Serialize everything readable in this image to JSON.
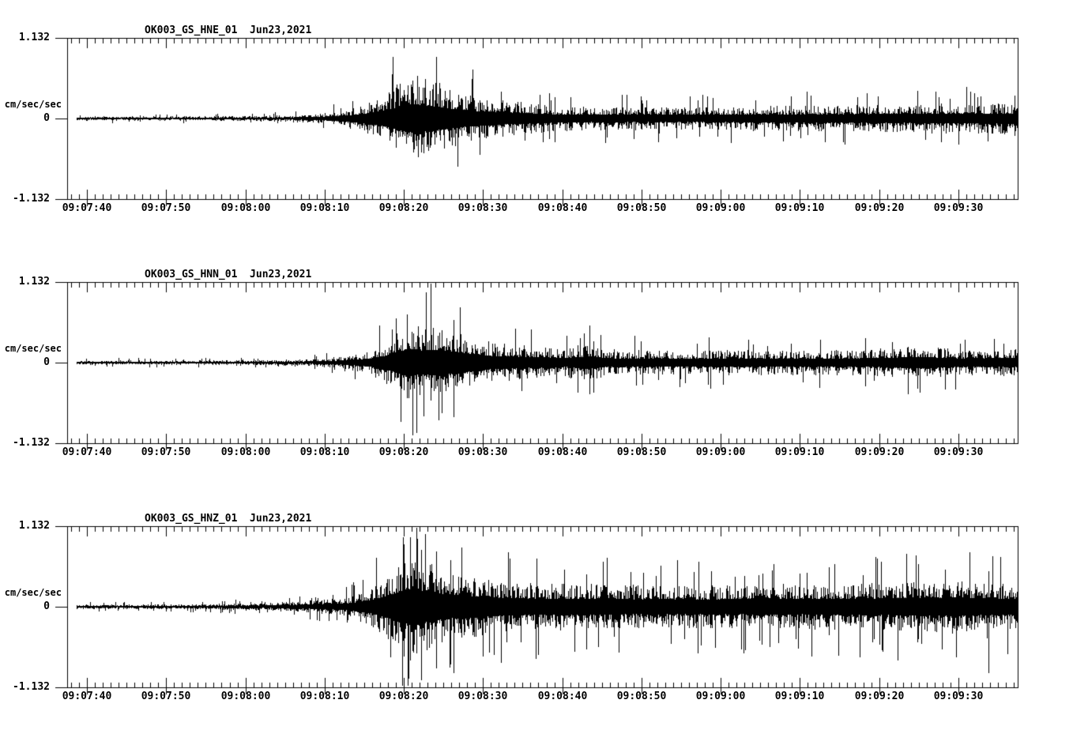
{
  "figure": {
    "background": "#ffffff",
    "trace_color": "#000000",
    "ylabel": "cm/sec/sec",
    "ytick_labels": [
      "1.132",
      "0",
      "-1.132"
    ],
    "panels": [
      "HNE",
      "HNN",
      "HNZ"
    ]
  },
  "chart_data": [
    {
      "type": "line",
      "subtype": "seismogram",
      "title": "OK003_GS_HNE_01  Jun23,2021",
      "station_channel": "OK003_GS_HNE_01",
      "date": "Jun23,2021",
      "ylabel": "cm/sec/sec",
      "ylim": [
        -1.132,
        1.132
      ],
      "yticks": [
        1.132,
        0,
        -1.132
      ],
      "ytick_labels": [
        "1.132",
        "0",
        "-1.132"
      ],
      "time_start": "09:07:37.5",
      "time_end": "09:09:37.5",
      "x_major_labels": [
        "09:07:40",
        "09:07:50",
        "09:08:00",
        "09:08:10",
        "09:08:20",
        "09:08:30",
        "09:08:40",
        "09:08:50",
        "09:09:00",
        "09:09:10",
        "09:09:20",
        "09:09:30"
      ],
      "first_major_offset_sec": 2.5,
      "major_tick_sec": 10,
      "minor_tick_sec": 1,
      "trace_start_offset_sec": 1.2,
      "envelope_t_sec": [
        1.2,
        15,
        25,
        31,
        34,
        37,
        40,
        42,
        43.6,
        46,
        48.5,
        51.5,
        55.5,
        61.5,
        71,
        81,
        91,
        101,
        111,
        120
      ],
      "envelope_amp": [
        0.03,
        0.033,
        0.04,
        0.06,
        0.1,
        0.18,
        0.33,
        0.52,
        0.63,
        0.55,
        0.42,
        0.32,
        0.26,
        0.18,
        0.16,
        0.16,
        0.18,
        0.19,
        0.21,
        0.22
      ],
      "spikes": [
        {
          "t": 60.8,
          "up": 0.36,
          "dn": 0.28
        },
        {
          "t": 61.5,
          "up": 0.3,
          "dn": 0.33
        },
        {
          "t": 119.6,
          "up": 0.32,
          "dn": 0.25
        }
      ],
      "texture": {
        "core": 0.32,
        "tail_exp": 2.4,
        "spike_prob": 0.035,
        "spike_gain": 1.7,
        "seed": 101
      }
    },
    {
      "type": "line",
      "subtype": "seismogram",
      "title": "OK003_GS_HNN_01  Jun23,2021",
      "station_channel": "OK003_GS_HNN_01",
      "date": "Jun23,2021",
      "ylabel": "cm/sec/sec",
      "ylim": [
        -1.132,
        1.132
      ],
      "yticks": [
        1.132,
        0,
        -1.132
      ],
      "ytick_labels": [
        "1.132",
        "0",
        "-1.132"
      ],
      "time_start": "09:07:37.5",
      "time_end": "09:09:37.5",
      "x_major_labels": [
        "09:07:40",
        "09:07:50",
        "09:08:00",
        "09:08:10",
        "09:08:20",
        "09:08:30",
        "09:08:40",
        "09:08:50",
        "09:09:00",
        "09:09:10",
        "09:09:20",
        "09:09:30"
      ],
      "first_major_offset_sec": 2.5,
      "major_tick_sec": 10,
      "minor_tick_sec": 1,
      "trace_start_offset_sec": 1.2,
      "envelope_t_sec": [
        1.2,
        15,
        25,
        31,
        35,
        38,
        41,
        42.9,
        44.5,
        47,
        49.5,
        53,
        58,
        63,
        65.8,
        68,
        76,
        86,
        96,
        103,
        107.7,
        113,
        120
      ],
      "envelope_amp": [
        0.028,
        0.031,
        0.038,
        0.055,
        0.09,
        0.16,
        0.36,
        0.6,
        0.52,
        0.56,
        0.44,
        0.3,
        0.24,
        0.2,
        0.28,
        0.19,
        0.17,
        0.18,
        0.17,
        0.2,
        0.24,
        0.18,
        0.2
      ],
      "spikes": [
        {
          "t": 42.9,
          "up": 0.68,
          "dn": 0.5
        },
        {
          "t": 47.3,
          "up": 0.45,
          "dn": 0.72
        },
        {
          "t": 48.8,
          "up": 0.6,
          "dn": 0.76
        },
        {
          "t": 65.9,
          "up": 0.52,
          "dn": 0.45
        },
        {
          "t": 66.4,
          "up": 0.3,
          "dn": 0.42
        }
      ],
      "texture": {
        "core": 0.32,
        "tail_exp": 2.4,
        "spike_prob": 0.04,
        "spike_gain": 1.7,
        "seed": 202
      }
    },
    {
      "type": "line",
      "subtype": "seismogram",
      "title": "OK003_GS_HNZ_01  Jun23,2021",
      "station_channel": "OK003_GS_HNZ_01",
      "date": "Jun23,2021",
      "ylabel": "cm/sec/sec",
      "ylim": [
        -1.132,
        1.132
      ],
      "yticks": [
        1.132,
        0,
        -1.132
      ],
      "ytick_labels": [
        "1.132",
        "0",
        "-1.132"
      ],
      "time_start": "09:07:37.5",
      "time_end": "09:09:37.5",
      "x_major_labels": [
        "09:07:40",
        "09:07:50",
        "09:08:00",
        "09:08:10",
        "09:08:20",
        "09:08:30",
        "09:08:40",
        "09:08:50",
        "09:09:00",
        "09:09:10",
        "09:09:20",
        "09:09:30"
      ],
      "first_major_offset_sec": 2.5,
      "major_tick_sec": 10,
      "minor_tick_sec": 1,
      "trace_start_offset_sec": 1.2,
      "envelope_t_sec": [
        1.2,
        15,
        25,
        31,
        35.5,
        38.5,
        41.5,
        43.4,
        45.5,
        48,
        51,
        54,
        58,
        63,
        70,
        80,
        90,
        100,
        107,
        112,
        116,
        120
      ],
      "envelope_amp": [
        0.03,
        0.035,
        0.05,
        0.09,
        0.14,
        0.28,
        0.55,
        0.75,
        0.62,
        0.5,
        0.43,
        0.37,
        0.34,
        0.33,
        0.31,
        0.3,
        0.32,
        0.33,
        0.36,
        0.38,
        0.34,
        0.33
      ],
      "spikes": [
        {
          "t": 42.5,
          "up": 0.88,
          "dn": 0.7
        },
        {
          "t": 43.3,
          "up": 0.98,
          "dn": 0.75
        },
        {
          "t": 44.7,
          "up": 0.8,
          "dn": 1.03
        },
        {
          "t": 46.6,
          "up": 0.78,
          "dn": 0.86
        },
        {
          "t": 48.4,
          "up": 0.66,
          "dn": 0.8
        },
        {
          "t": 65.5,
          "up": 0.45,
          "dn": 0.6
        },
        {
          "t": 96.2,
          "up": 0.55,
          "dn": 0.4
        },
        {
          "t": 107.4,
          "up": 0.6,
          "dn": 0.45
        },
        {
          "t": 116.3,
          "up": 0.5,
          "dn": 0.93
        }
      ],
      "texture": {
        "core": 0.34,
        "tail_exp": 1.9,
        "spike_prob": 0.06,
        "spike_gain": 1.75,
        "seed": 303
      }
    }
  ]
}
